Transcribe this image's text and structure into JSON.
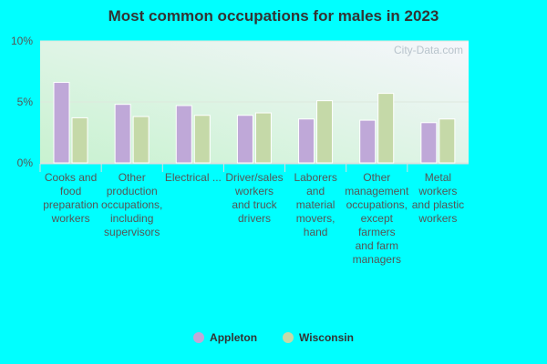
{
  "chart_data": {
    "type": "bar",
    "title": "Most common occupations for males in 2023",
    "categories": [
      [
        "Cooks and",
        "food",
        "preparation",
        "workers"
      ],
      [
        "Other",
        "production",
        "occupations,",
        "including",
        "supervisors"
      ],
      [
        "Electrical ..."
      ],
      [
        "Driver/sales",
        "workers",
        "and truck",
        "drivers"
      ],
      [
        "Laborers",
        "and",
        "material",
        "movers,",
        "hand"
      ],
      [
        "Other",
        "management",
        "occupations,",
        "except",
        "farmers",
        "and farm",
        "managers"
      ],
      [
        "Metal",
        "workers",
        "and plastic",
        "workers"
      ]
    ],
    "series": [
      {
        "name": "Appleton",
        "color": "#bfa8d8",
        "values": [
          6.6,
          4.8,
          4.7,
          3.9,
          3.6,
          3.5,
          3.3
        ]
      },
      {
        "name": "Wisconsin",
        "color": "#c5d9a8",
        "values": [
          3.7,
          3.8,
          3.9,
          4.1,
          5.1,
          5.7,
          3.6
        ]
      }
    ],
    "ylim": [
      0,
      10
    ],
    "yticks": [
      "0%",
      "5%",
      "10%"
    ],
    "legend": "bottom",
    "grid": true
  },
  "watermark": "City-Data.com"
}
